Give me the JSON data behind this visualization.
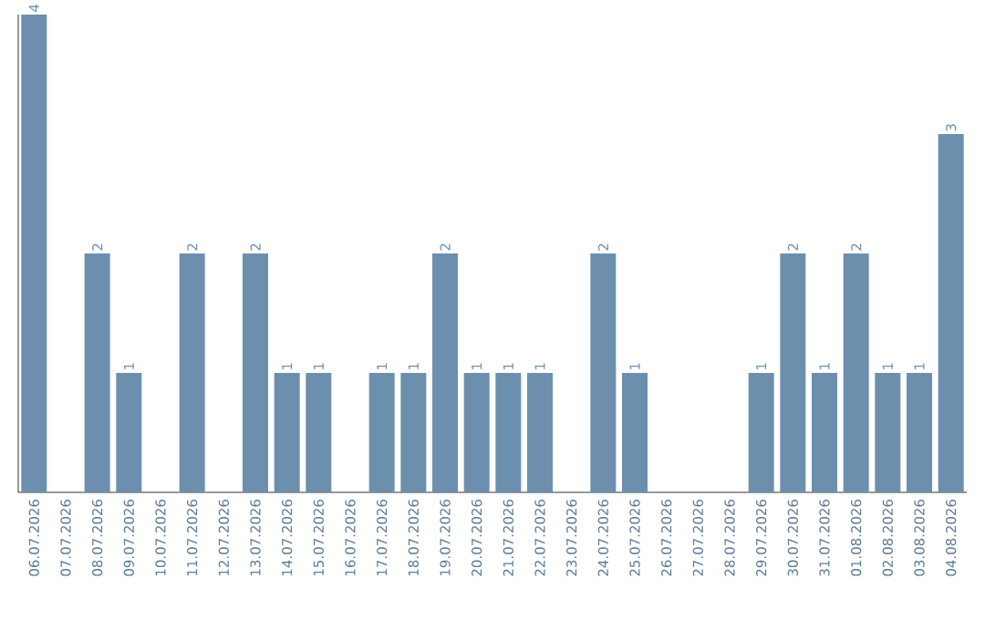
{
  "chart_data": {
    "type": "bar",
    "categories": [
      "06.07.2026",
      "07.07.2026",
      "08.07.2026",
      "09.07.2026",
      "10.07.2026",
      "11.07.2026",
      "12.07.2026",
      "13.07.2026",
      "14.07.2026",
      "15.07.2026",
      "16.07.2026",
      "17.07.2026",
      "18.07.2026",
      "19.07.2026",
      "20.07.2026",
      "21.07.2026",
      "22.07.2026",
      "23.07.2026",
      "24.07.2026",
      "25.07.2026",
      "26.07.2026",
      "27.07.2026",
      "28.07.2026",
      "29.07.2026",
      "30.07.2026",
      "31.07.2026",
      "01.08.2026",
      "02.08.2026",
      "03.08.2026",
      "04.08.2026"
    ],
    "values": [
      4,
      0,
      2,
      1,
      0,
      2,
      0,
      2,
      1,
      1,
      0,
      1,
      1,
      2,
      1,
      1,
      1,
      0,
      2,
      1,
      0,
      0,
      0,
      1,
      2,
      1,
      2,
      1,
      1,
      3
    ],
    "value_labels": [
      "4",
      null,
      "2",
      "1",
      null,
      "2",
      null,
      "2",
      "1",
      "1",
      null,
      "1",
      "1",
      "2",
      "1",
      "1",
      "1",
      null,
      "2",
      "1",
      null,
      null,
      null,
      "1",
      "2",
      "1",
      "2",
      "1",
      "1",
      "3"
    ],
    "color": "#6d8fae",
    "ylim": [
      0,
      4
    ],
    "tick_labels": "x"
  }
}
